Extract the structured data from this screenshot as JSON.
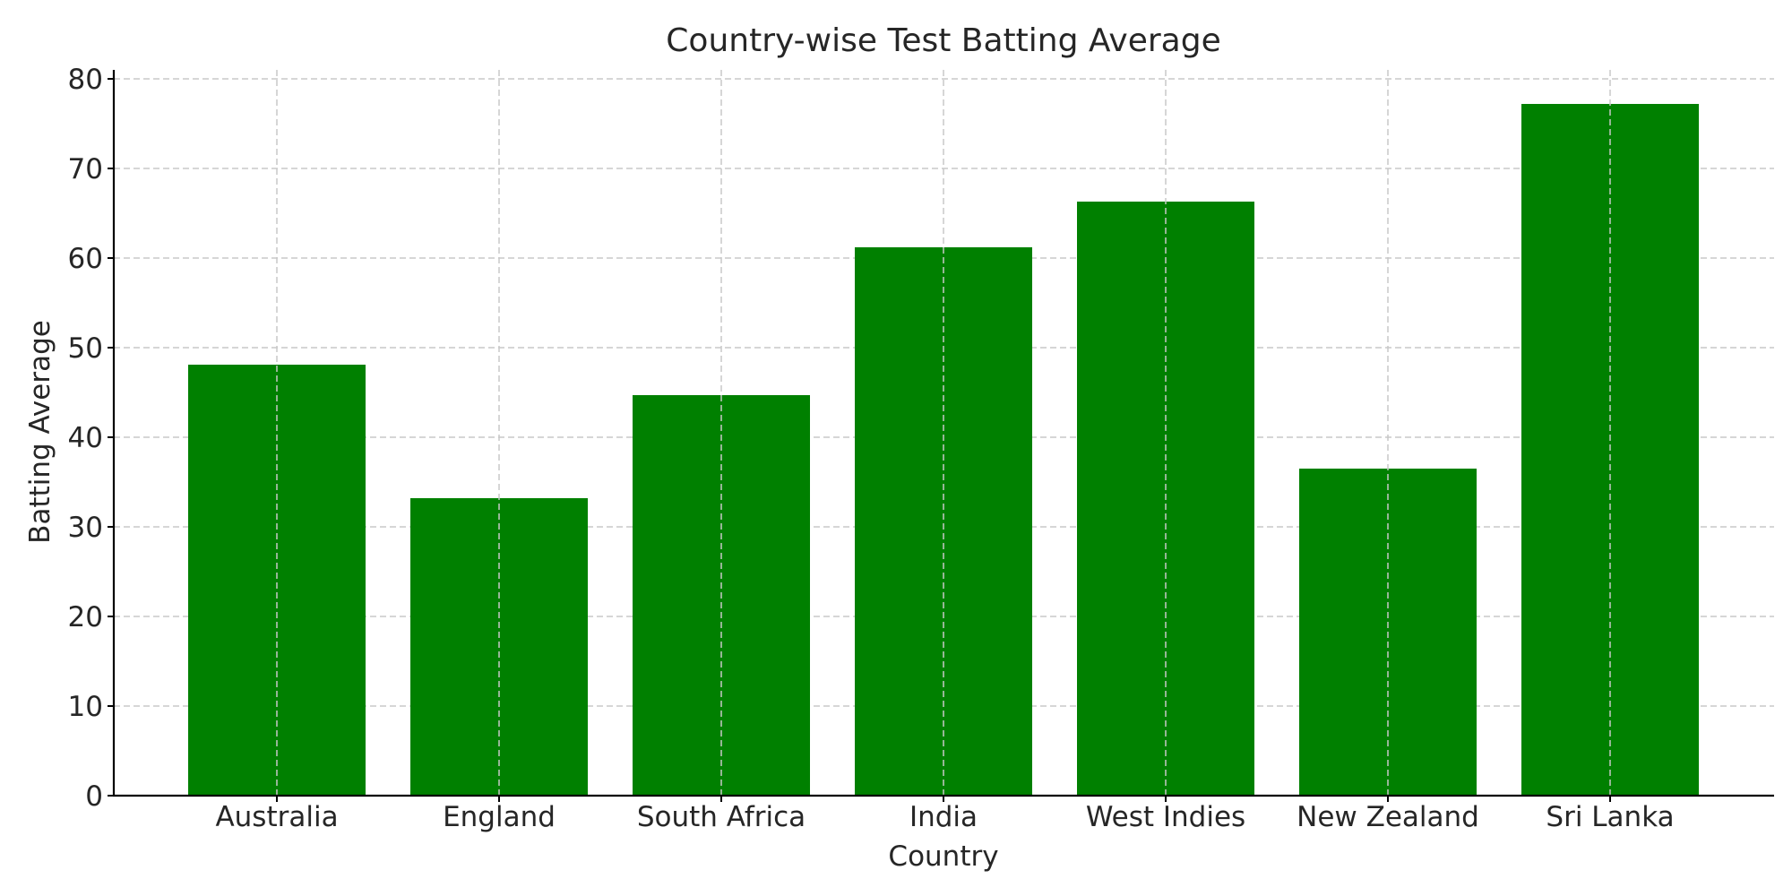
{
  "chart_data": {
    "type": "bar",
    "title": "Country-wise Test Batting Average",
    "xlabel": "Country",
    "ylabel": "Batting Average",
    "categories": [
      "Australia",
      "England",
      "South Africa",
      "India",
      "West Indies",
      "New Zealand",
      "Sri Lanka"
    ],
    "values": [
      48.1,
      33.2,
      44.7,
      61.2,
      66.3,
      36.5,
      77.2
    ],
    "ylim": [
      0,
      80
    ],
    "yticks": [
      "0",
      "10",
      "20",
      "30",
      "40",
      "50",
      "60",
      "70",
      "80"
    ],
    "grid": true,
    "bar_color": "#008000",
    "grid_color": "#c8c8c8"
  }
}
